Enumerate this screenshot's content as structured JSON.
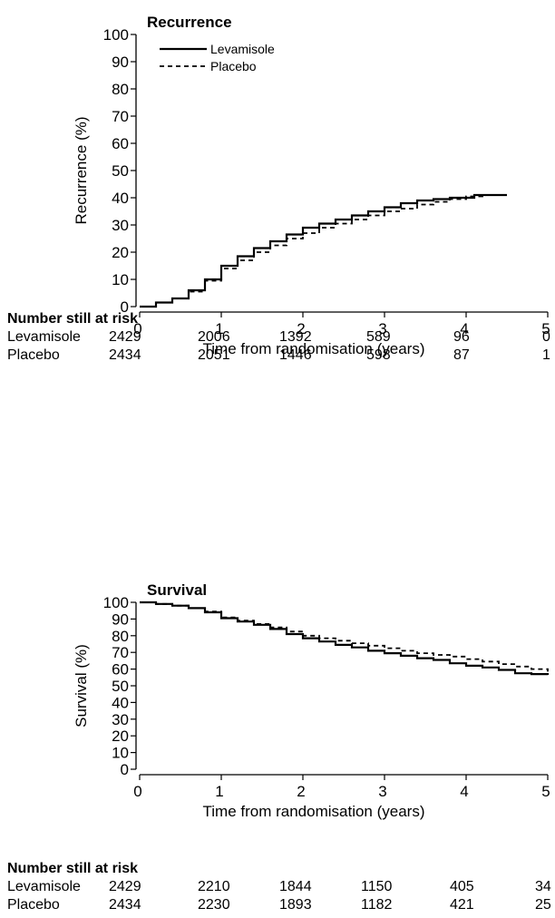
{
  "chart_data": [
    {
      "type": "line",
      "title": "Recurrence",
      "xlabel": "Time from randomisation (years)",
      "ylabel": "Recurrence (%)",
      "xlim": [
        0,
        5
      ],
      "ylim": [
        0,
        100
      ],
      "xticks": [
        "0",
        "1",
        "2",
        "3",
        "4",
        "5"
      ],
      "yticks": [
        "0",
        "10",
        "20",
        "30",
        "40",
        "50",
        "60",
        "70",
        "80",
        "90",
        "100"
      ],
      "legend": {
        "position": "top-left",
        "entries": [
          "Levamisole",
          "Placebo"
        ]
      },
      "series": [
        {
          "name": "Levamisole",
          "line_style": "solid",
          "x": [
            0,
            0.2,
            0.4,
            0.6,
            0.8,
            1.0,
            1.2,
            1.4,
            1.6,
            1.8,
            2.0,
            2.2,
            2.4,
            2.6,
            2.8,
            3.0,
            3.2,
            3.4,
            3.6,
            3.8,
            4.0,
            4.1,
            4.3,
            4.5
          ],
          "y": [
            0,
            1.5,
            3,
            6,
            10,
            15,
            18.5,
            21.5,
            24,
            26.5,
            29,
            30.5,
            32,
            33.5,
            35,
            36.5,
            38,
            39,
            39.5,
            40,
            40,
            41,
            41,
            41
          ]
        },
        {
          "name": "Placebo",
          "line_style": "dashed",
          "x": [
            0,
            0.2,
            0.4,
            0.6,
            0.8,
            1.0,
            1.2,
            1.4,
            1.6,
            1.8,
            2.0,
            2.2,
            2.4,
            2.6,
            2.8,
            3.0,
            3.2,
            3.4,
            3.6,
            3.8,
            4.0,
            4.2,
            4.5
          ],
          "y": [
            0,
            1.5,
            3,
            5.5,
            9.5,
            14,
            17,
            20,
            22.5,
            25,
            27,
            29,
            30.5,
            32,
            33.5,
            35,
            36,
            37.5,
            38.5,
            39.5,
            40.5,
            41,
            41
          ]
        }
      ]
    },
    {
      "type": "line",
      "title": "Survival",
      "xlabel": "Time from randomisation (years)",
      "ylabel": "Survival (%)",
      "xlim": [
        0,
        5
      ],
      "ylim": [
        0,
        100
      ],
      "xticks": [
        "0",
        "1",
        "2",
        "3",
        "4",
        "5"
      ],
      "yticks": [
        "0",
        "10",
        "20",
        "30",
        "40",
        "50",
        "60",
        "70",
        "80",
        "90",
        "100"
      ],
      "series": [
        {
          "name": "Levamisole",
          "line_style": "solid",
          "x": [
            0,
            0.2,
            0.4,
            0.6,
            0.8,
            1.0,
            1.2,
            1.4,
            1.6,
            1.8,
            2.0,
            2.2,
            2.4,
            2.6,
            2.8,
            3.0,
            3.2,
            3.4,
            3.6,
            3.8,
            4.0,
            4.2,
            4.4,
            4.6,
            4.8,
            5.0
          ],
          "y": [
            100,
            99,
            98,
            96.5,
            94,
            90.5,
            88.5,
            86.5,
            84,
            81,
            78.5,
            76.5,
            74.5,
            73,
            71,
            69.5,
            68,
            66.5,
            65.5,
            63.5,
            62,
            61,
            59.5,
            57.5,
            57,
            56.5
          ]
        },
        {
          "name": "Placebo",
          "line_style": "dashed",
          "x": [
            0,
            0.2,
            0.4,
            0.6,
            0.8,
            1.0,
            1.2,
            1.4,
            1.6,
            1.8,
            2.0,
            2.2,
            2.4,
            2.6,
            2.8,
            3.0,
            3.2,
            3.4,
            3.6,
            3.8,
            4.0,
            4.2,
            4.4,
            4.6,
            4.8,
            5.0
          ],
          "y": [
            100,
            99,
            98,
            96.5,
            94.5,
            91,
            89,
            87,
            85,
            82.5,
            80,
            78.5,
            77,
            75.5,
            74,
            72.5,
            71,
            69.5,
            68.5,
            67.5,
            66,
            64.5,
            63,
            61.5,
            60,
            58.5
          ]
        }
      ]
    }
  ],
  "risk_tables": [
    {
      "title": "Number still at risk",
      "rows": [
        {
          "label": "Levamisole",
          "values": [
            "2429",
            "2006",
            "1392",
            "589",
            "96",
            "0"
          ]
        },
        {
          "label": "Placebo",
          "values": [
            "2434",
            "2051",
            "1446",
            "598",
            "87",
            "1"
          ]
        }
      ]
    },
    {
      "title": "Number still at risk",
      "rows": [
        {
          "label": "Levamisole",
          "values": [
            "2429",
            "2210",
            "1844",
            "1150",
            "405",
            "34"
          ]
        },
        {
          "label": "Placebo",
          "values": [
            "2434",
            "2230",
            "1893",
            "1182",
            "421",
            "25"
          ]
        }
      ]
    }
  ]
}
